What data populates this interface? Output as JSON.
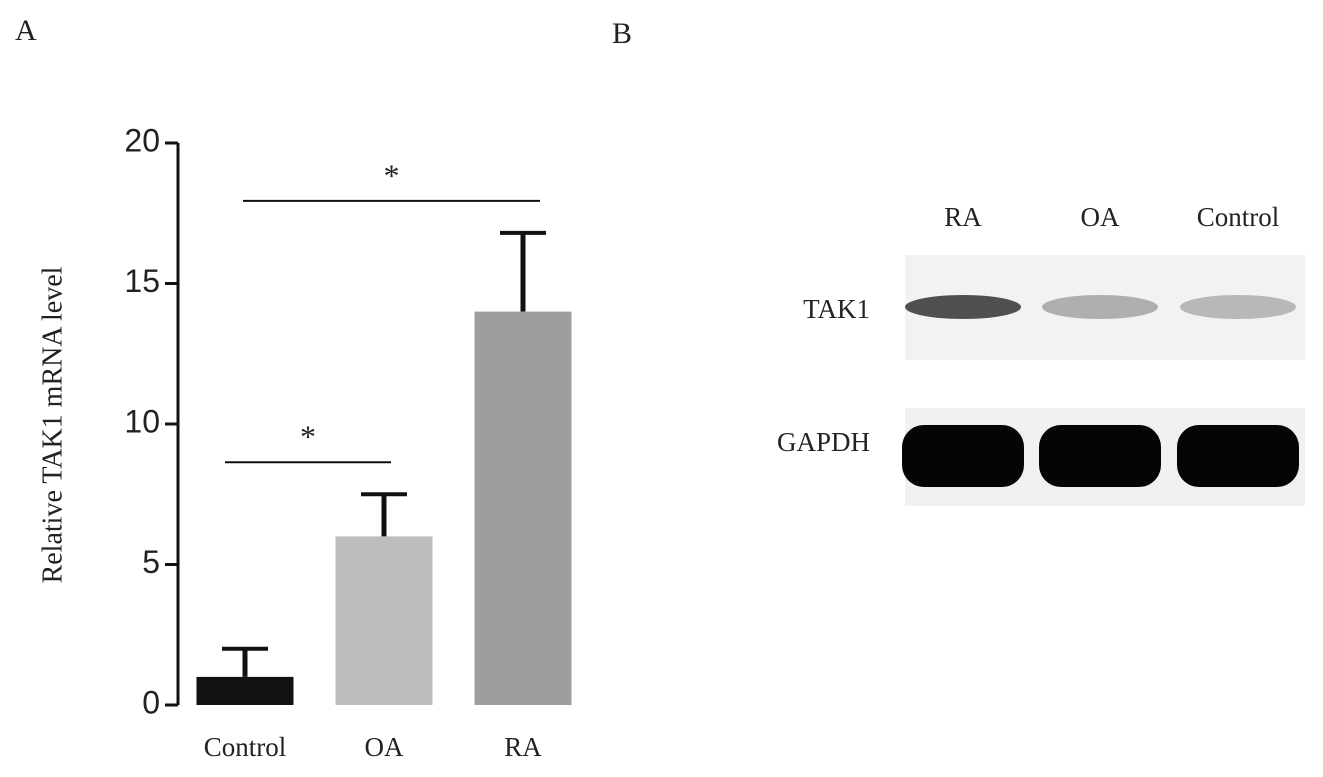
{
  "panel_labels": [
    "A",
    "B"
  ],
  "chart_data": {
    "type": "bar",
    "ylabel": "Relative TAK1 mRNA level",
    "categories": [
      "Control",
      "OA",
      "RA"
    ],
    "values": [
      1,
      6,
      14
    ],
    "errors": [
      1,
      1.5,
      2.8
    ],
    "colors": [
      "#111111",
      "#bdbdbd",
      "#9e9e9e"
    ],
    "ylim": [
      0,
      20
    ],
    "yticks": [
      0,
      5,
      10,
      15,
      20
    ],
    "significance": [
      "*",
      "*"
    ]
  },
  "blot": {
    "lanes": [
      "RA",
      "OA",
      "Control"
    ],
    "rows": [
      "TAK1",
      "GAPDH"
    ]
  }
}
